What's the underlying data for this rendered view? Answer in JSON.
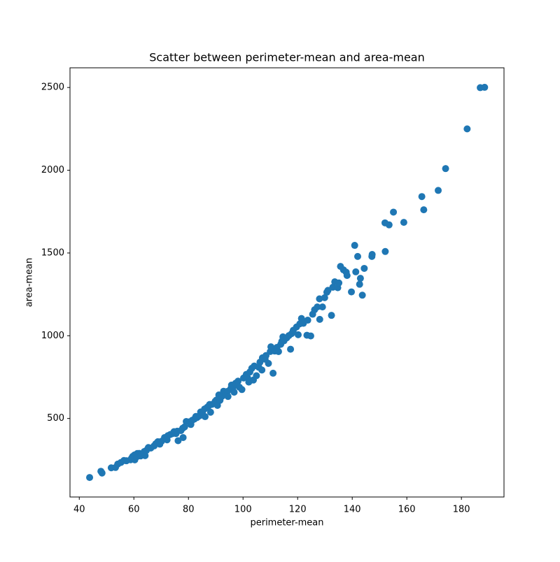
{
  "chart_data": {
    "type": "scatter",
    "title": "Scatter between perimeter-mean and area-mean",
    "x_label": "perimeter-mean",
    "y_label": "area-mean",
    "color": "#1f77b4",
    "xlim": [
      36.6,
      195.6
    ],
    "ylim": [
      25.6,
      2619
    ],
    "xticks": [
      40,
      60,
      80,
      100,
      120,
      140,
      160,
      180
    ],
    "yticks": [
      500,
      1000,
      1500,
      2000,
      2500
    ],
    "x": [
      43.79,
      47.92,
      48.34,
      51.71,
      53.27,
      54.09,
      55.27,
      56.36,
      57.26,
      58.79,
      59.2,
      59.6,
      60.21,
      60.34,
      61.06,
      61.24,
      61.93,
      62.5,
      63.19,
      63.78,
      64.12,
      64.6,
      65.31,
      66.2,
      67.41,
      68.01,
      68.79,
      69.5,
      70.15,
      71.24,
      72.17,
      72.48,
      73.34,
      74.2,
      74.72,
      75.46,
      75.89,
      76.2,
      77.23,
      77.88,
      78.6,
      78.04,
      79.19,
      80.45,
      80.88,
      81.37,
      82.15,
      82.71,
      83.19,
      84.08,
      84.45,
      85.09,
      85.89,
      86.1,
      86.87,
      87.36,
      87.76,
      88.1,
      88.64,
      89.79,
      90.2,
      90.63,
      91.12,
      91.56,
      92.25,
      92.87,
      93.6,
      94.25,
      94.49,
      95.5,
      95.77,
      96.22,
      96.73,
      97.26,
      98.17,
      98.64,
      99.58,
      100.2,
      101.2,
      101.7,
      102.1,
      102.5,
      103.2,
      103.8,
      104.1,
      104.9,
      105.8,
      106.2,
      106.9,
      107.1,
      108.1,
      108.4,
      109.3,
      110,
      110.2,
      111,
      111.6,
      112.4,
      113,
      113.8,
      114.2,
      114.6,
      115,
      116,
      116.8,
      117.4,
      117.8,
      118.4,
      119.6,
      120.2,
      120.8,
      121.4,
      122.1,
      123.4,
      123.7,
      124.8,
      125.5,
      126.2,
      127.2,
      128,
      128.1,
      129.1,
      129.9,
      130.7,
      131.1,
      132.4,
      132.9,
      133.6,
      134.7,
      135.1,
      135.7,
      136.8,
      137.8,
      138.1,
      139.7,
      140.9,
      141.3,
      142,
      142.7,
      143,
      143.7,
      144.4,
      147.2,
      147.3,
      152,
      152.1,
      153.5,
      155.1,
      158.9,
      165.5,
      166.2,
      171.5,
      174.2,
      182.1,
      186.9,
      188.5
    ],
    "values": [
      143.5,
      181,
      170.4,
      201.9,
      203.9,
      224.5,
      234.3,
      246.3,
      244.5,
      250.5,
      260.9,
      271.3,
      279.6,
      250.2,
      268.8,
      288.5,
      289.1,
      273.9,
      285.7,
      300.2,
      275.5,
      307.3,
      324.2,
      321.4,
      334.2,
      347,
      359.9,
      344.9,
      362.7,
      384.8,
      371.1,
      396.5,
      403.1,
      409,
      420.3,
      409.1,
      422.9,
      365.6,
      426.7,
      441,
      449.3,
      384.8,
      481.9,
      480.4,
      463.7,
      489,
      496.3,
      512.2,
      506.3,
      516.4,
      539.3,
      537.3,
      557.2,
      511.2,
      567.7,
      574.7,
      584.8,
      537.9,
      585.2,
      603.4,
      611.2,
      579.1,
      642.2,
      609.9,
      633.5,
      664.7,
      644.8,
      663.5,
      633.1,
      680.9,
      701.9,
      685.9,
      658.8,
      712.8,
      725.5,
      689.5,
      674.8,
      744.7,
      766.6,
      744.9,
      719.8,
      781,
      803.1,
      732.4,
      817,
      758.6,
      808.9,
      840,
      793,
      866.7,
      858.1,
      880.2,
      832.9,
      904.6,
      933.1,
      773.5,
      907.6,
      929.4,
      904.3,
      948,
      966,
      993.2,
      969.1,
      987.2,
      1001,
      918.6,
      1013,
      1033,
      1053,
      1006,
      1072,
      1104,
      1075,
      1003,
      1094,
      998.9,
      1130,
      1157,
      1174,
      1223,
      1099,
      1174,
      1230,
      1263,
      1274,
      1123,
      1293,
      1326,
      1290,
      1319,
      1419,
      1398,
      1384,
      1364,
      1265,
      1546,
      1386,
      1479,
      1311,
      1347,
      1245,
      1407,
      1479,
      1491,
      1682,
      1509,
      1670,
      1747,
      1685,
      1841,
      1761,
      1878,
      2010,
      2250,
      2499,
      2501
    ]
  }
}
